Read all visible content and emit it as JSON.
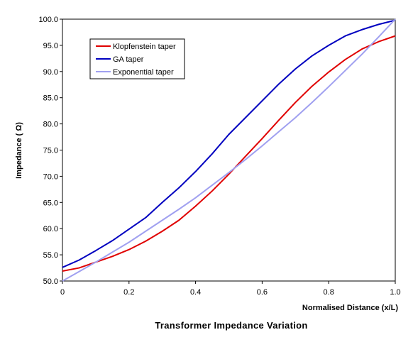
{
  "chart_data": {
    "type": "line",
    "title": "Transformer Impedance Variation",
    "xlabel": "Normalised Distance (x/L)",
    "ylabel": "Impedance ( Ω)",
    "xlim": [
      0,
      1
    ],
    "ylim": [
      50,
      100
    ],
    "xticks": [
      "0",
      "0.2",
      "0.4",
      "0.6",
      "0.8",
      "1.0"
    ],
    "xtick_values": [
      0,
      0.2,
      0.4,
      0.6,
      0.8,
      1.0
    ],
    "yticks": [
      "50.0",
      "55.0",
      "60.0",
      "65.0",
      "70.0",
      "75.0",
      "80.0",
      "85.0",
      "90.0",
      "95.0",
      "100.0"
    ],
    "ytick_values": [
      50,
      55,
      60,
      65,
      70,
      75,
      80,
      85,
      90,
      95,
      100
    ],
    "grid": false,
    "legend_position": "top-left",
    "series": [
      {
        "name": "Klopfenstein taper",
        "color": "#e00000",
        "x": [
          0,
          0.05,
          0.1,
          0.15,
          0.2,
          0.25,
          0.3,
          0.35,
          0.4,
          0.45,
          0.5,
          0.55,
          0.6,
          0.65,
          0.7,
          0.75,
          0.8,
          0.85,
          0.9,
          0.95,
          1.0
        ],
        "y": [
          51.9,
          52.5,
          53.6,
          54.7,
          56.0,
          57.6,
          59.5,
          61.6,
          64.3,
          67.2,
          70.4,
          73.8,
          77.2,
          80.7,
          84.1,
          87.2,
          89.9,
          92.3,
          94.3,
          95.7,
          96.8
        ]
      },
      {
        "name": "GA taper",
        "color": "#0000c0",
        "x": [
          0,
          0.05,
          0.1,
          0.15,
          0.2,
          0.25,
          0.3,
          0.35,
          0.4,
          0.45,
          0.5,
          0.55,
          0.6,
          0.65,
          0.7,
          0.75,
          0.8,
          0.85,
          0.9,
          0.95,
          1.0
        ],
        "y": [
          52.6,
          54.0,
          55.8,
          57.7,
          59.9,
          62.1,
          65.0,
          67.8,
          70.9,
          74.3,
          78.0,
          81.2,
          84.4,
          87.6,
          90.5,
          93.0,
          95.0,
          96.8,
          98.0,
          99.0,
          99.8
        ]
      },
      {
        "name": "Exponential taper",
        "color": "#a0a0f0",
        "x": [
          0,
          0.05,
          0.1,
          0.15,
          0.2,
          0.25,
          0.3,
          0.35,
          0.4,
          0.45,
          0.5,
          0.55,
          0.6,
          0.65,
          0.7,
          0.75,
          0.8,
          0.85,
          0.9,
          0.95,
          1.0
        ],
        "y": [
          50.0,
          51.8,
          53.6,
          55.5,
          57.4,
          59.5,
          61.6,
          63.7,
          65.9,
          68.3,
          70.7,
          73.2,
          75.8,
          78.5,
          81.2,
          84.1,
          87.1,
          90.2,
          93.3,
          96.6,
          100.0
        ]
      }
    ]
  }
}
